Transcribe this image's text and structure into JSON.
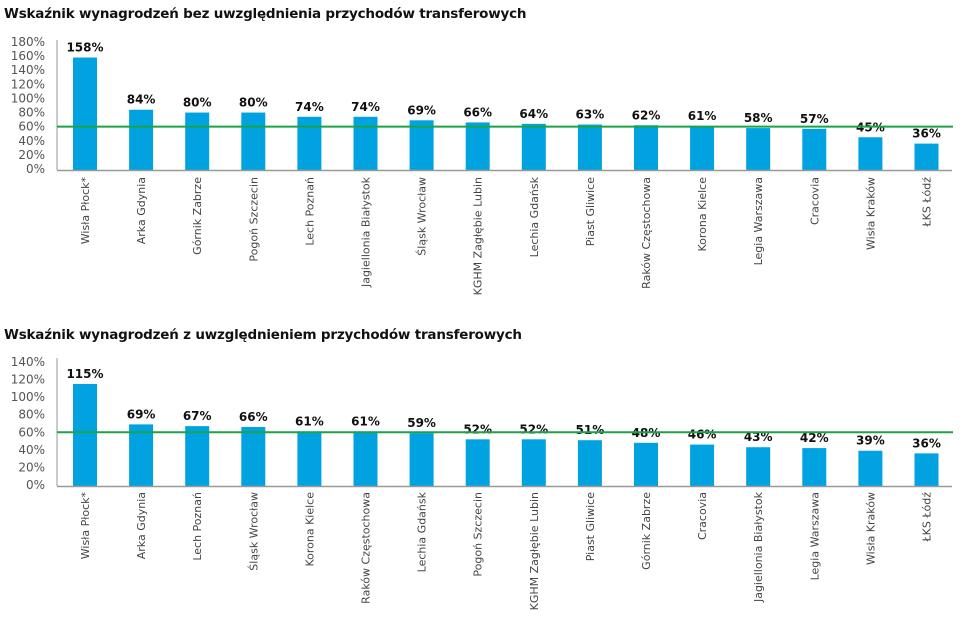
{
  "colors": {
    "bar": "#00A3E0",
    "reference_line": "#1BA345",
    "axis": "#999999"
  },
  "chart_data": [
    {
      "type": "bar",
      "title": "Wskaźnik wynagrodzeń bez uwzględnienia przychodów transferowych",
      "xlabel": "",
      "ylabel": "",
      "ylim": [
        0,
        180
      ],
      "yticks": [
        "0%",
        "20%",
        "40%",
        "60%",
        "80%",
        "100%",
        "120%",
        "140%",
        "160%",
        "180%"
      ],
      "ytick_values": [
        0,
        20,
        40,
        60,
        80,
        100,
        120,
        140,
        160,
        180
      ],
      "reference_line": 60,
      "grid": false,
      "legend": "none",
      "categories": [
        "Wisła Płock*",
        "Arka Gdynia",
        "Górnik Zabrze",
        "Pogoń Szczecin",
        "Lech Poznań",
        "Jagiellonia Białystok",
        "Śląsk Wrocław",
        "KGHM Zagłębie Lubin",
        "Lechia Gdańsk",
        "Piast Gliwice",
        "Raków Częstochowa",
        "Korona Kielce",
        "Legia Warszawa",
        "Cracovia",
        "Wisła Kraków",
        "ŁKS Łódź"
      ],
      "values": [
        158,
        84,
        80,
        80,
        74,
        74,
        69,
        66,
        64,
        63,
        62,
        61,
        58,
        57,
        45,
        36
      ],
      "labels": [
        "158%",
        "84%",
        "80%",
        "80%",
        "74%",
        "74%",
        "69%",
        "66%",
        "64%",
        "63%",
        "62%",
        "61%",
        "58%",
        "57%",
        "45%",
        "36%"
      ]
    },
    {
      "type": "bar",
      "title": "Wskaźnik wynagrodzeń z uwzględnieniem przychodów transferowych",
      "xlabel": "",
      "ylabel": "",
      "ylim": [
        0,
        140
      ],
      "yticks": [
        "0%",
        "20%",
        "40%",
        "60%",
        "80%",
        "100%",
        "120%",
        "140%"
      ],
      "ytick_values": [
        0,
        20,
        40,
        60,
        80,
        100,
        120,
        140
      ],
      "reference_line": 60,
      "grid": false,
      "legend": "none",
      "categories": [
        "Wisła Płock*",
        "Arka Gdynia",
        "Lech Poznań",
        "Śląsk Wrocław",
        "Korona Kielce",
        "Raków Częstochowa",
        "Lechia Gdańsk",
        "Pogoń Szczecin",
        "KGHM Zagłębie Lubin",
        "Piast Gliwice",
        "Górnik Zabrze",
        "Cracovia",
        "Jagiellonia Białystok",
        "Legia Warszawa",
        "Wisła Kraków",
        "ŁKS Łódź"
      ],
      "values": [
        115,
        69,
        67,
        66,
        61,
        61,
        59,
        52,
        52,
        51,
        48,
        46,
        43,
        42,
        39,
        36
      ],
      "labels": [
        "115%",
        "69%",
        "67%",
        "66%",
        "61%",
        "61%",
        "59%",
        "52%",
        "52%",
        "51%",
        "48%",
        "46%",
        "43%",
        "42%",
        "39%",
        "36%"
      ]
    }
  ]
}
